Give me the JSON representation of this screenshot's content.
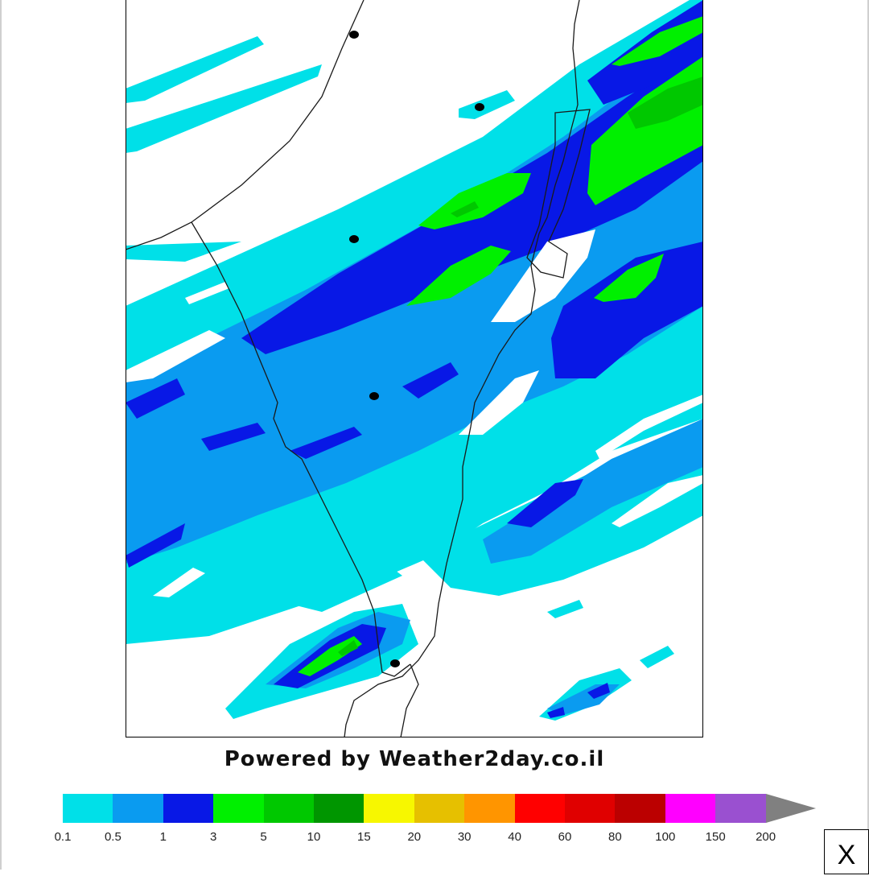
{
  "footer": {
    "powered_text": "Powered by Weather2day.co.il"
  },
  "legend": {
    "colors": [
      "#00e0e8",
      "#0a9bf0",
      "#0818e6",
      "#00f000",
      "#00c800",
      "#009600",
      "#f7f700",
      "#e6c000",
      "#ff9500",
      "#ff0000",
      "#e00000",
      "#bb0000",
      "#ff00ff",
      "#9a50d0"
    ],
    "arrow_color": "#808080",
    "ticks": [
      "0.1",
      "0.5",
      "1",
      "3",
      "5",
      "10",
      "15",
      "20",
      "30",
      "40",
      "60",
      "80",
      "100",
      "150",
      "200"
    ]
  },
  "map": {
    "cities": [
      {
        "name": "city-dot-north"
      },
      {
        "name": "city-dot-center-north"
      },
      {
        "name": "city-dot-center"
      },
      {
        "name": "city-dot-south-1"
      },
      {
        "name": "city-dot-south-2"
      }
    ]
  },
  "close_button": {
    "label": "X"
  }
}
